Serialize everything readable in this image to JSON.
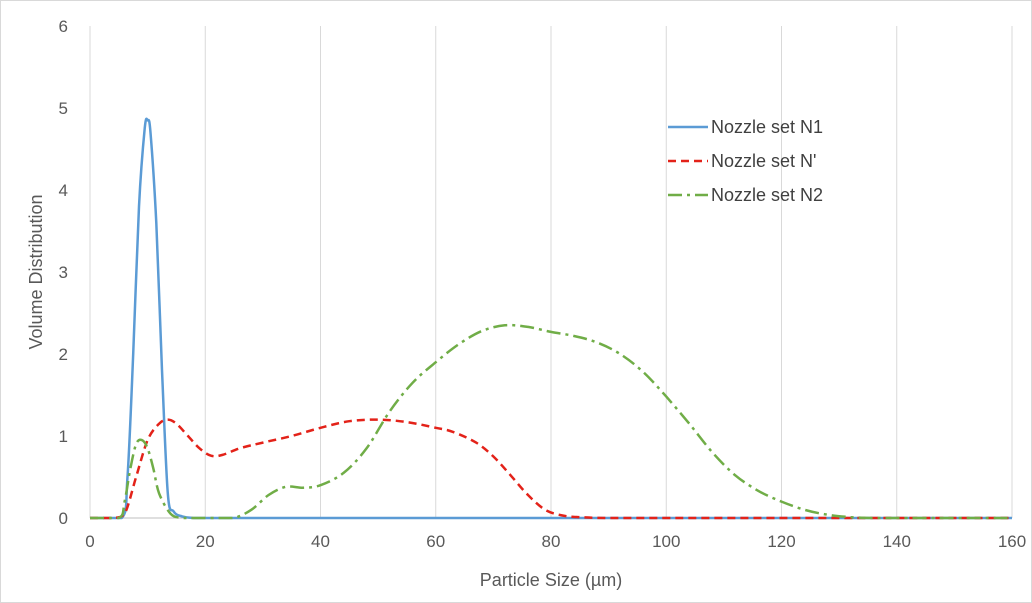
{
  "chart_data": {
    "type": "line",
    "title": "",
    "xlabel": "Particle Size (µm)",
    "ylabel": "Volume Distribution",
    "xlim": [
      0,
      160
    ],
    "ylim": [
      0,
      6
    ],
    "xticks": [
      0,
      20,
      40,
      60,
      80,
      100,
      120,
      140,
      160
    ],
    "yticks": [
      0,
      1,
      2,
      3,
      4,
      5,
      6
    ],
    "grid": "vertical",
    "legend_position": "right",
    "series": [
      {
        "name": "Nozzle set N1",
        "color": "#5b9bd5",
        "dash": "solid",
        "x": [
          0,
          5.5,
          6.5,
          7.5,
          8.5,
          9.5,
          10,
          10.5,
          11.5,
          12.5,
          13.5,
          14.5,
          16,
          18,
          20,
          40,
          80,
          120,
          160
        ],
        "y": [
          0,
          0,
          0.5,
          2.0,
          3.8,
          4.75,
          4.85,
          4.7,
          3.6,
          1.8,
          0.3,
          0.08,
          0.02,
          0,
          0,
          0,
          0,
          0,
          0
        ]
      },
      {
        "name": "Nozzle set N'",
        "color": "#e32219",
        "dash": "dashed",
        "x": [
          0,
          4,
          6,
          8,
          10,
          12,
          13.5,
          15,
          17,
          19,
          21,
          23,
          26,
          30,
          35,
          40,
          45,
          50,
          55,
          60,
          63,
          67,
          70,
          73,
          76,
          79,
          82,
          85,
          90,
          100,
          120,
          140,
          160
        ],
        "y": [
          0,
          0,
          0.05,
          0.5,
          0.95,
          1.15,
          1.2,
          1.15,
          1.0,
          0.85,
          0.76,
          0.77,
          0.85,
          0.92,
          1.0,
          1.1,
          1.18,
          1.2,
          1.17,
          1.1,
          1.05,
          0.92,
          0.75,
          0.52,
          0.28,
          0.1,
          0.03,
          0.01,
          0,
          0,
          0,
          0,
          0
        ]
      },
      {
        "name": "Nozzle set N2",
        "color": "#70ad47",
        "dash": "dashdot",
        "x": [
          0,
          5,
          6,
          7,
          8,
          9,
          10,
          11,
          12,
          14,
          16,
          18,
          22,
          25,
          28,
          31,
          34,
          37,
          40,
          44,
          48,
          52,
          56,
          60,
          64,
          68,
          72,
          76,
          80,
          84,
          88,
          92,
          96,
          100,
          104,
          108,
          112,
          116,
          120,
          124,
          128,
          132,
          136,
          140,
          160
        ],
        "y": [
          0,
          0,
          0.2,
          0.6,
          0.9,
          0.95,
          0.85,
          0.6,
          0.3,
          0.05,
          0,
          0,
          0,
          0,
          0.1,
          0.28,
          0.38,
          0.37,
          0.4,
          0.55,
          0.85,
          1.3,
          1.65,
          1.9,
          2.12,
          2.28,
          2.35,
          2.33,
          2.27,
          2.22,
          2.14,
          2.0,
          1.78,
          1.48,
          1.15,
          0.8,
          0.52,
          0.33,
          0.2,
          0.1,
          0.04,
          0.01,
          0,
          0,
          0
        ]
      }
    ]
  }
}
